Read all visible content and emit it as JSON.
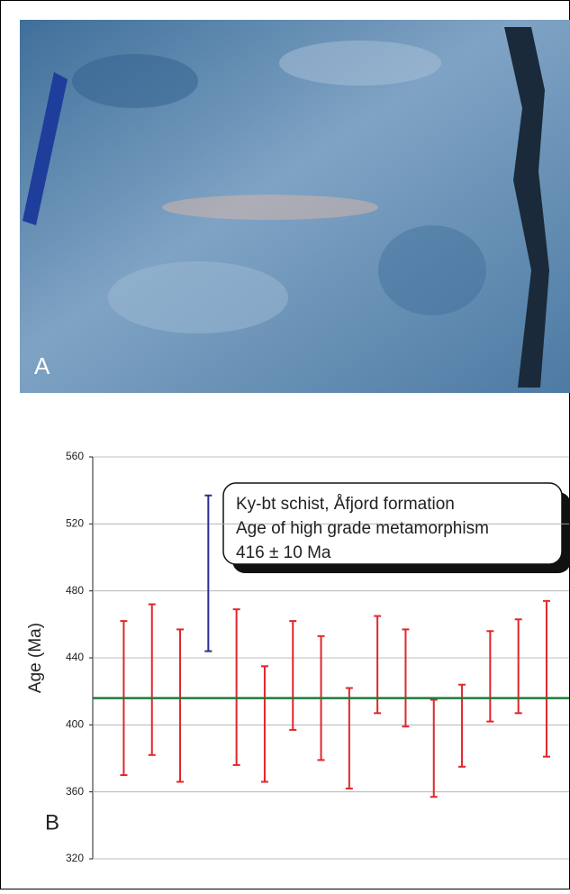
{
  "panel_a": {
    "label": "A"
  },
  "chart_data": {
    "type": "errorbar",
    "panel_label": "B",
    "y_label": "Age (Ma)",
    "annotation": [
      "Ky-bt schist, Åfjord formation",
      "Age of high grade metamorphism",
      "416 ± 10 Ma"
    ],
    "low": [
      370,
      382,
      366,
      444,
      376,
      366,
      397,
      379,
      362,
      407,
      399,
      357,
      375,
      402,
      407,
      381
    ],
    "high": [
      462,
      472,
      457,
      537,
      469,
      435,
      462,
      453,
      422,
      465,
      457,
      415,
      424,
      456,
      463,
      474
    ],
    "colors": [
      "#e0262b",
      "#e0262b",
      "#e0262b",
      "#2a2f8f",
      "#e0262b",
      "#e0262b",
      "#e0262b",
      "#e0262b",
      "#e0262b",
      "#e0262b",
      "#e0262b",
      "#e0262b",
      "#e0262b",
      "#e0262b",
      "#e0262b",
      "#e0262b"
    ],
    "reference_line": {
      "value": 416,
      "color": "#1e7a3c"
    },
    "ylim": [
      320,
      560
    ],
    "yticks": [
      320,
      360,
      400,
      440,
      480,
      520,
      560
    ],
    "grid": true
  }
}
